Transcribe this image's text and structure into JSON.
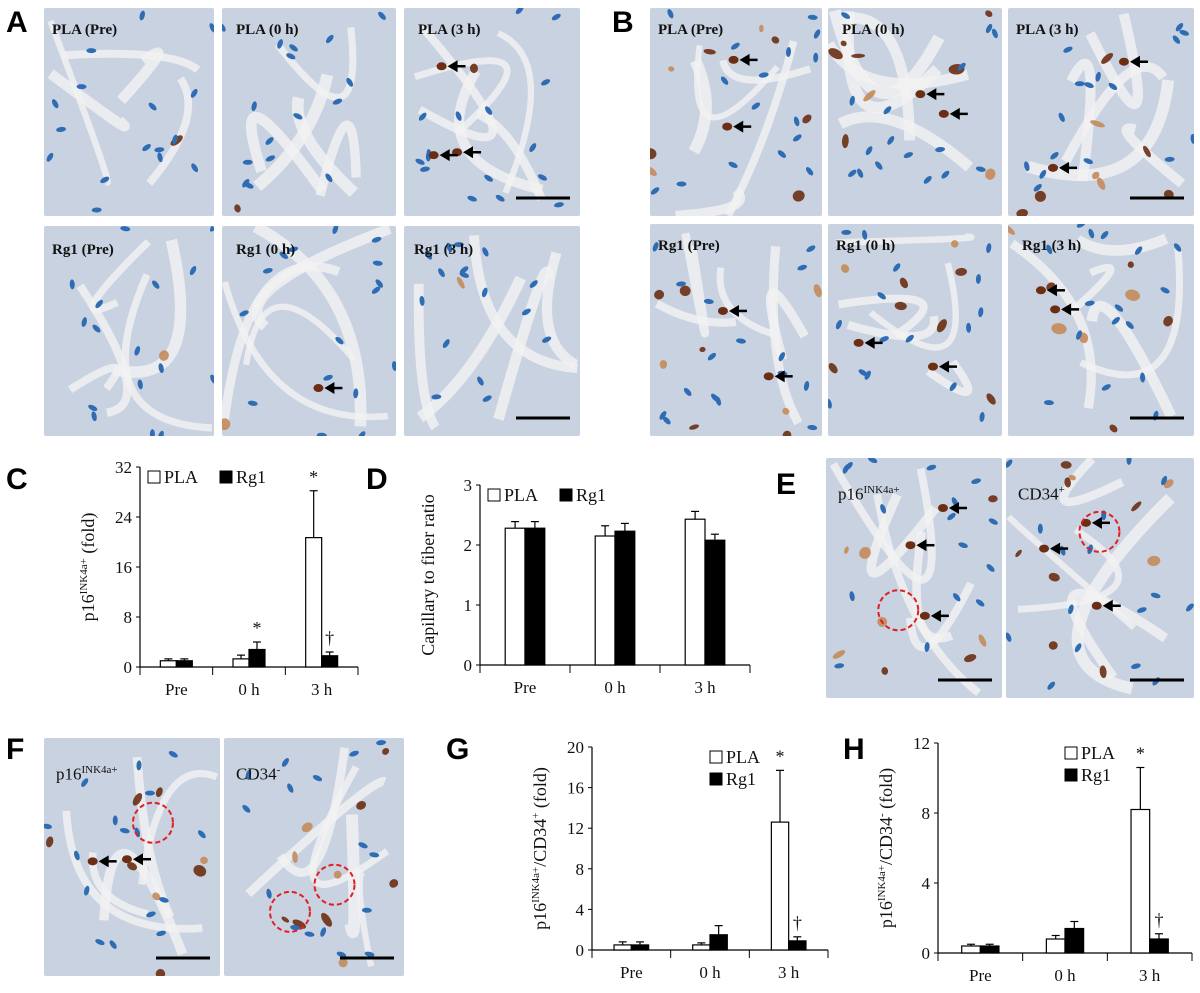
{
  "panels": {
    "A": {
      "letter": "A",
      "images": [
        {
          "label": "PLA (Pre)"
        },
        {
          "label": "PLA (0 h)"
        },
        {
          "label": "PLA (3 h)"
        },
        {
          "label": "Rg1 (Pre)"
        },
        {
          "label": "Rg1 (0 h)"
        },
        {
          "label": "Rg1 (3 h)"
        }
      ]
    },
    "B": {
      "letter": "B",
      "images": [
        {
          "label": "PLA (Pre)"
        },
        {
          "label": "PLA (0 h)"
        },
        {
          "label": "PLA (3 h)"
        },
        {
          "label": "Rg1 (Pre)"
        },
        {
          "label": "Rg1 (0 h)"
        },
        {
          "label": "Rg1 (3 h)"
        }
      ]
    },
    "C": {
      "letter": "C"
    },
    "D": {
      "letter": "D"
    },
    "E": {
      "letter": "E",
      "images": [
        {
          "label_main": "p16",
          "label_sup": "INK4a+"
        },
        {
          "label_main": "CD34",
          "label_sup": "+"
        }
      ]
    },
    "F": {
      "letter": "F",
      "images": [
        {
          "label_main": "p16",
          "label_sup": "INK4a+"
        },
        {
          "label_main": "CD34",
          "label_sup": "-"
        }
      ]
    },
    "G": {
      "letter": "G"
    },
    "H": {
      "letter": "H"
    }
  },
  "colors": {
    "tissue": "#c9d2e0",
    "nucleus": "#2e6db3",
    "stain": "#6b2e12",
    "stain_light": "#c48a5a",
    "circle": "#e02020"
  },
  "chart_data": [
    {
      "panel": "C",
      "type": "bar",
      "categories": [
        "Pre",
        "0 h",
        "3 h"
      ],
      "series": [
        {
          "name": "PLA",
          "values": [
            1.0,
            1.3,
            20.7
          ],
          "errors": [
            0.3,
            0.6,
            7.5
          ],
          "color": "#ffffff"
        },
        {
          "name": "Rg1",
          "values": [
            1.0,
            2.8,
            1.8
          ],
          "errors": [
            0.3,
            1.2,
            0.6
          ],
          "color": "#000000"
        }
      ],
      "ylabel_main": "p16",
      "ylabel_sup": "INK4a+",
      "ylabel_rest": " (fold)",
      "ylim": [
        0,
        32
      ],
      "yticks": [
        0,
        8,
        16,
        24,
        32
      ],
      "annotations": [
        {
          "category": "0 h",
          "series": "Rg1",
          "text": "*"
        },
        {
          "category": "3 h",
          "series": "PLA",
          "text": "*"
        },
        {
          "category": "3 h",
          "series": "Rg1",
          "text": "†"
        }
      ],
      "legend": "top-left"
    },
    {
      "panel": "D",
      "type": "bar",
      "categories": [
        "Pre",
        "0 h",
        "3 h"
      ],
      "series": [
        {
          "name": "PLA",
          "values": [
            2.28,
            2.15,
            2.43
          ],
          "errors": [
            0.11,
            0.17,
            0.13
          ],
          "color": "#ffffff"
        },
        {
          "name": "Rg1",
          "values": [
            2.28,
            2.23,
            2.08
          ],
          "errors": [
            0.11,
            0.13,
            0.1
          ],
          "color": "#000000"
        }
      ],
      "ylabel_main": "Capillary to fiber ratio",
      "ylabel_sup": "",
      "ylabel_rest": "",
      "ylim": [
        0,
        3
      ],
      "yticks": [
        0,
        1,
        2,
        3
      ],
      "annotations": [],
      "legend": "top-left"
    },
    {
      "panel": "G",
      "type": "bar",
      "categories": [
        "Pre",
        "0 h",
        "3 h"
      ],
      "series": [
        {
          "name": "PLA",
          "values": [
            0.5,
            0.5,
            12.6
          ],
          "errors": [
            0.3,
            0.2,
            5.1
          ],
          "color": "#ffffff"
        },
        {
          "name": "Rg1",
          "values": [
            0.5,
            1.5,
            0.9
          ],
          "errors": [
            0.3,
            0.9,
            0.4
          ],
          "color": "#000000"
        }
      ],
      "ylabel_main": "p16",
      "ylabel_sup": "INK4a+",
      "ylabel_rest": "/CD34",
      "ylabel_sup2": "+",
      "ylabel_end": " (fold)",
      "ylim": [
        0,
        20
      ],
      "yticks": [
        0,
        4,
        8,
        12,
        16,
        20
      ],
      "annotations": [
        {
          "category": "3 h",
          "series": "PLA",
          "text": "*"
        },
        {
          "category": "3 h",
          "series": "Rg1",
          "text": "†"
        }
      ],
      "legend": "top-right"
    },
    {
      "panel": "H",
      "type": "bar",
      "categories": [
        "Pre",
        "0 h",
        "3 h"
      ],
      "series": [
        {
          "name": "PLA",
          "values": [
            0.4,
            0.8,
            8.2
          ],
          "errors": [
            0.1,
            0.2,
            2.4
          ],
          "color": "#ffffff"
        },
        {
          "name": "Rg1",
          "values": [
            0.4,
            1.4,
            0.8
          ],
          "errors": [
            0.1,
            0.4,
            0.3
          ],
          "color": "#000000"
        }
      ],
      "ylabel_main": "p16",
      "ylabel_sup": "INK4a+",
      "ylabel_rest": "/CD34",
      "ylabel_sup2": "-",
      "ylabel_end": " (fold)",
      "ylim": [
        0,
        12
      ],
      "yticks": [
        0,
        4,
        8,
        12
      ],
      "annotations": [
        {
          "category": "3 h",
          "series": "PLA",
          "text": "*"
        },
        {
          "category": "3 h",
          "series": "Rg1",
          "text": "†"
        }
      ],
      "legend": "top-right"
    }
  ]
}
